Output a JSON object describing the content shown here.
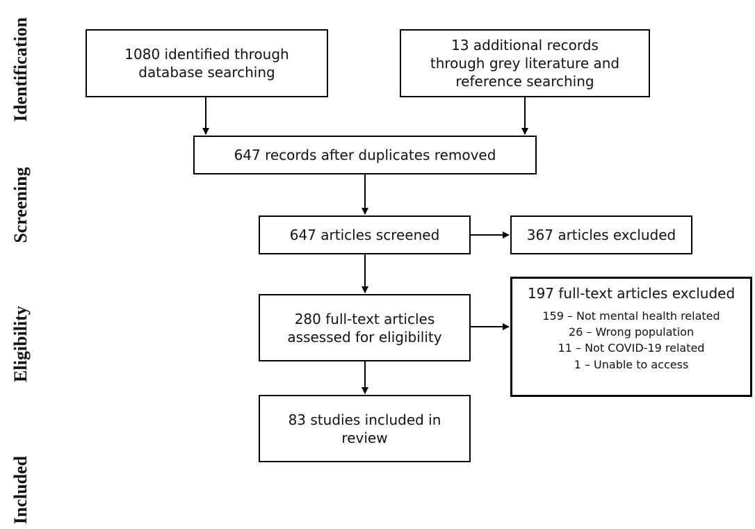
{
  "stages": {
    "identification": "Identification",
    "screening": "Screening",
    "eligibility": "Eligibility",
    "included": "Included"
  },
  "boxes": {
    "database": "1080 identified through\ndatabase searching",
    "additional": "13 additional records\nthrough grey literature and\nreference searching",
    "after_duplicates": "647 records after duplicates removed",
    "screened": "647 articles screened",
    "excluded_screen": "367 articles excluded",
    "fulltext": "280 full-text articles\nassessed for eligibility",
    "included": "83 studies included in\nreview"
  },
  "fulltext_excluded": {
    "title": "197 full-text articles excluded",
    "reasons": [
      "159 – Not mental health related",
      "26 – Wrong population",
      "11 – Not COVID-19 related",
      "1 – Unable to access"
    ]
  }
}
